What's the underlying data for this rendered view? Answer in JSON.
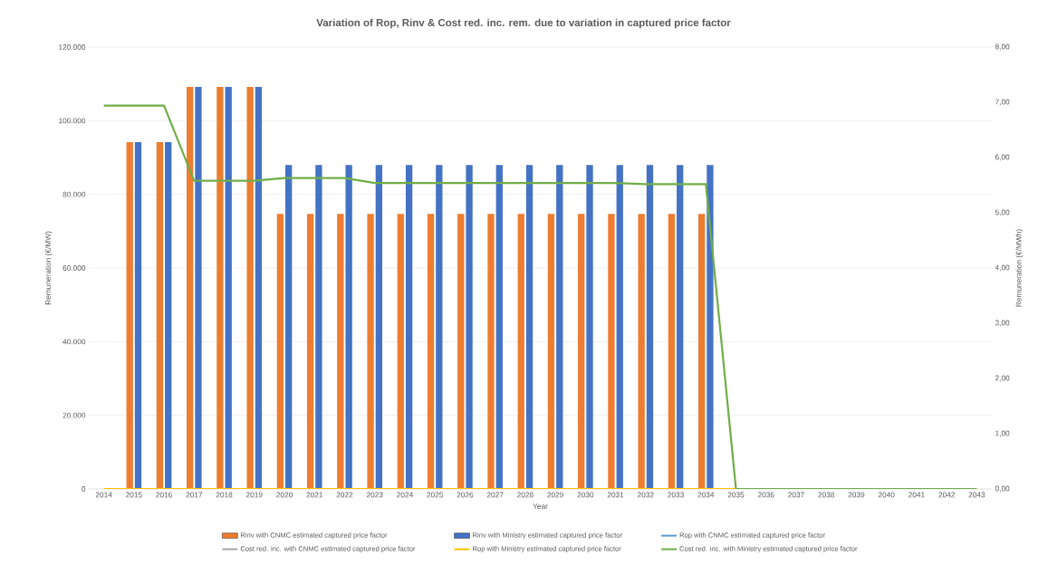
{
  "chart_data": {
    "type": "bar",
    "title": "Variation of Rop, Rinv & Cost red. inc. rem. due to variation in captured price factor",
    "xlabel": "Year",
    "ylabel": "Remuneration (€/MW)",
    "y2label": "Remuneration (€/MWh)",
    "categories": [
      "2014",
      "2015",
      "2016",
      "2017",
      "2018",
      "2019",
      "2020",
      "2021",
      "2022",
      "2023",
      "2024",
      "2025",
      "2026",
      "2027",
      "2028",
      "2029",
      "2030",
      "2031",
      "2032",
      "2033",
      "2034",
      "2035",
      "2036",
      "2037",
      "2038",
      "2039",
      "2040",
      "2041",
      "2042",
      "2043"
    ],
    "series": [
      {
        "name": "Rinv with CNMC estimated captured price factor",
        "color": "#ed7d31",
        "values": [
          null,
          94200,
          94200,
          109200,
          109200,
          109200,
          74700,
          74700,
          74700,
          74700,
          74700,
          74700,
          74700,
          74700,
          74700,
          74700,
          74700,
          74700,
          74700,
          74700,
          74700,
          null,
          null,
          null,
          null,
          null,
          null,
          null,
          null,
          null
        ]
      },
      {
        "name": "Rinv with Ministry estimated captured price factor",
        "color": "#4472c4",
        "values": [
          null,
          94200,
          94200,
          109200,
          109200,
          109200,
          88000,
          88000,
          88000,
          88000,
          88000,
          88000,
          88000,
          88000,
          88000,
          88000,
          88000,
          88000,
          88000,
          88000,
          88000,
          null,
          null,
          null,
          null,
          null,
          null,
          null,
          null,
          null
        ]
      },
      {
        "name": "Rop with CNMC estimated captured price factor",
        "type": "line",
        "color": "#5b9bd5",
        "values": [
          null,
          null,
          null,
          null,
          null,
          null,
          null,
          null,
          null,
          null,
          null,
          null,
          null,
          null,
          null,
          null,
          null,
          null,
          null,
          null,
          null,
          null,
          null,
          null,
          null,
          null,
          null,
          null,
          null,
          null
        ]
      },
      {
        "name": "Cost red. inc. with CNMC estimated captured price factor",
        "type": "line",
        "color": "#a5a5a5",
        "values": [
          null,
          null,
          null,
          null,
          null,
          null,
          null,
          null,
          null,
          null,
          null,
          null,
          null,
          null,
          null,
          null,
          null,
          null,
          null,
          null,
          null,
          null,
          null,
          null,
          null,
          null,
          null,
          null,
          null,
          null
        ]
      },
      {
        "name": "Rop with Ministry estimated captured price factor",
        "type": "line",
        "color": "#ffc000",
        "values": [
          0,
          0,
          0,
          0,
          0,
          0,
          0,
          0,
          0,
          0,
          0,
          0,
          0,
          0,
          0,
          0,
          0,
          0,
          0,
          0,
          0,
          0,
          null,
          null,
          null,
          null,
          null,
          null,
          null,
          null
        ]
      },
      {
        "name": "Cost red. inc. with Ministry estimated captured price factor",
        "type": "line",
        "color": "#70ad47",
        "axis": "y2",
        "values": [
          6.94,
          6.94,
          6.94,
          5.58,
          5.58,
          5.58,
          5.63,
          5.63,
          5.63,
          5.54,
          5.54,
          5.54,
          5.54,
          5.54,
          5.54,
          5.54,
          5.54,
          5.54,
          5.52,
          5.52,
          5.52,
          0,
          0,
          0,
          0,
          0,
          0,
          0,
          0,
          0
        ]
      }
    ],
    "ylim": [
      0,
      120000
    ],
    "yticks": [
      {
        "value": 0,
        "label": "0"
      },
      {
        "value": 20000,
        "label": "20.000"
      },
      {
        "value": 40000,
        "label": "40.000"
      },
      {
        "value": 60000,
        "label": "60.000"
      },
      {
        "value": 80000,
        "label": "80.000"
      },
      {
        "value": 100000,
        "label": "100.000"
      },
      {
        "value": 120000,
        "label": "120.000"
      }
    ],
    "y2lim": [
      0,
      8
    ],
    "y2ticks": [
      {
        "value": 0,
        "label": "0,00"
      },
      {
        "value": 1,
        "label": "1,00"
      },
      {
        "value": 2,
        "label": "2,00"
      },
      {
        "value": 3,
        "label": "3,00"
      },
      {
        "value": 4,
        "label": "4,00"
      },
      {
        "value": 5,
        "label": "5,00"
      },
      {
        "value": 6,
        "label": "6,00"
      },
      {
        "value": 7,
        "label": "7,00"
      },
      {
        "value": 8,
        "label": "8,00"
      }
    ],
    "grid": "y",
    "legend": "bottom"
  }
}
